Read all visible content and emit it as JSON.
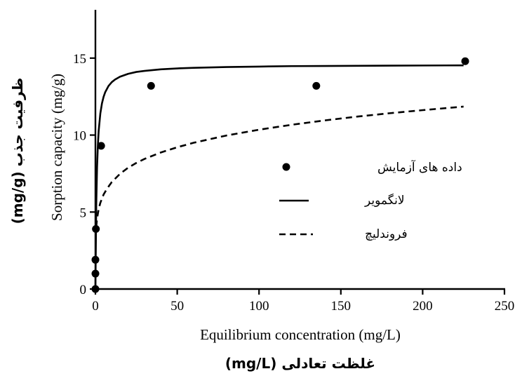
{
  "chart_data": {
    "type": "scatter",
    "x_label_en": "Equilibrium concentration (mg/L)",
    "x_label_fa": "غلظت تعادلی (mg/L)",
    "y_label_en": "Sorption capacity (mg/g)",
    "y_label_fa": "ظرفیت جذب (mg/g)",
    "xlim": [
      0,
      250
    ],
    "ylim": [
      0,
      18
    ],
    "x_ticks": [
      "0",
      "50",
      "100",
      "150",
      "200",
      "250"
    ],
    "y_ticks": [
      "0",
      "5",
      "10",
      "15"
    ],
    "x_tick_values": [
      0,
      50,
      100,
      150,
      200,
      250
    ],
    "y_tick_values": [
      0,
      5,
      10,
      15
    ],
    "grid": false,
    "legend_position": "center-right",
    "series": [
      {
        "name": "داده های آزمایش",
        "kind": "points",
        "x": [
          0,
          0,
          0,
          0.3,
          3.5,
          34,
          135,
          226
        ],
        "y": [
          0,
          1,
          1.9,
          3.9,
          9.3,
          13.2,
          13.2,
          14.8
        ]
      },
      {
        "name": "لانگمویر",
        "kind": "line-solid",
        "x": [
          0,
          0.5,
          1,
          1.5,
          2,
          3,
          4,
          5,
          6,
          8,
          10,
          12,
          15,
          20,
          25,
          30,
          40,
          50,
          60,
          80,
          100,
          120,
          140,
          160,
          180,
          200,
          225
        ],
        "y": [
          0,
          5.43,
          7.92,
          9.35,
          10.28,
          11.4,
          12.06,
          12.49,
          12.79,
          13.19,
          13.44,
          13.61,
          13.79,
          13.98,
          14.1,
          14.17,
          14.27,
          14.33,
          14.37,
          14.42,
          14.45,
          14.48,
          14.49,
          14.5,
          14.51,
          14.52,
          14.53
        ]
      },
      {
        "name": "فروندلیچ",
        "kind": "line-dashed",
        "x": [
          0.5,
          1,
          2,
          3,
          5,
          7,
          10,
          15,
          20,
          25,
          30,
          40,
          50,
          60,
          80,
          100,
          120,
          140,
          160,
          180,
          200,
          225
        ],
        "y": [
          4.04,
          4.58,
          5.2,
          5.6,
          6.14,
          6.5,
          6.95,
          7.48,
          7.88,
          8.19,
          8.45,
          8.87,
          9.21,
          9.5,
          9.97,
          10.35,
          10.67,
          10.95,
          11.2,
          11.42,
          11.62,
          11.85
        ]
      }
    ]
  }
}
